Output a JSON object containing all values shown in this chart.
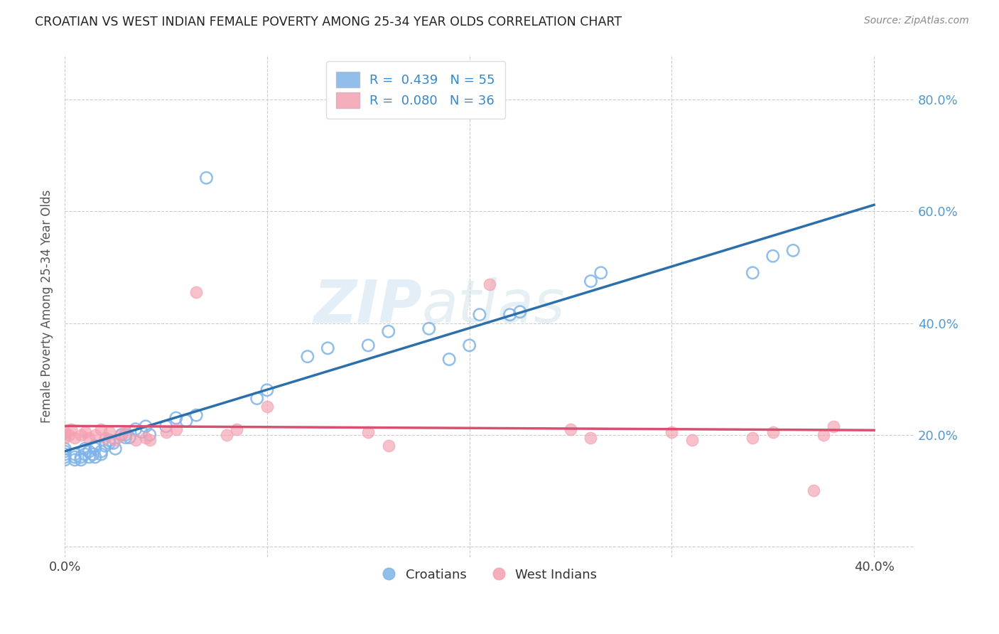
{
  "title": "CROATIAN VS WEST INDIAN FEMALE POVERTY AMONG 25-34 YEAR OLDS CORRELATION CHART",
  "source": "Source: ZipAtlas.com",
  "ylabel": "Female Poverty Among 25-34 Year Olds",
  "xlim": [
    0.0,
    0.42
  ],
  "ylim": [
    -0.02,
    0.88
  ],
  "x_ticks": [
    0.0,
    0.1,
    0.2,
    0.3,
    0.4
  ],
  "x_tick_labels_show": [
    "0.0%",
    "40.0%"
  ],
  "y_ticks_right": [
    0.2,
    0.4,
    0.6,
    0.8
  ],
  "y_tick_labels_right": [
    "20.0%",
    "40.0%",
    "60.0%",
    "80.0%"
  ],
  "croatian_color": "#7fb3e8",
  "west_indian_color": "#f4a0b0",
  "croatian_line_color": "#2c6fad",
  "west_indian_line_color": "#d94f70",
  "legend_label_1": "R =  0.439   N = 55",
  "legend_label_2": "R =  0.080   N = 36",
  "legend_labels_bottom": [
    "Croatians",
    "West Indians"
  ],
  "watermark_1": "ZIP",
  "watermark_2": "atlas",
  "background_color": "#ffffff",
  "grid_color": "#cccccc",
  "croatian_x": [
    0.0,
    0.0,
    0.0,
    0.0,
    0.0,
    0.005,
    0.005,
    0.005,
    0.008,
    0.008,
    0.01,
    0.01,
    0.012,
    0.012,
    0.014,
    0.015,
    0.015,
    0.015,
    0.018,
    0.018,
    0.02,
    0.022,
    0.022,
    0.024,
    0.025,
    0.028,
    0.03,
    0.03,
    0.032,
    0.035,
    0.038,
    0.04,
    0.042,
    0.05,
    0.055,
    0.06,
    0.065,
    0.07,
    0.095,
    0.1,
    0.12,
    0.13,
    0.15,
    0.16,
    0.18,
    0.19,
    0.2,
    0.205,
    0.22,
    0.225,
    0.26,
    0.265,
    0.34,
    0.35,
    0.36
  ],
  "croatian_y": [
    0.155,
    0.16,
    0.165,
    0.17,
    0.175,
    0.155,
    0.16,
    0.165,
    0.155,
    0.16,
    0.165,
    0.175,
    0.16,
    0.17,
    0.165,
    0.175,
    0.18,
    0.16,
    0.165,
    0.17,
    0.18,
    0.19,
    0.185,
    0.185,
    0.175,
    0.2,
    0.195,
    0.2,
    0.195,
    0.21,
    0.205,
    0.215,
    0.2,
    0.215,
    0.23,
    0.225,
    0.235,
    0.66,
    0.265,
    0.28,
    0.34,
    0.355,
    0.36,
    0.385,
    0.39,
    0.335,
    0.36,
    0.415,
    0.415,
    0.42,
    0.475,
    0.49,
    0.49,
    0.52,
    0.53
  ],
  "west_indian_x": [
    0.0,
    0.0,
    0.002,
    0.003,
    0.005,
    0.008,
    0.01,
    0.012,
    0.015,
    0.018,
    0.02,
    0.022,
    0.025,
    0.028,
    0.03,
    0.035,
    0.04,
    0.042,
    0.05,
    0.055,
    0.065,
    0.08,
    0.085,
    0.1,
    0.15,
    0.16,
    0.21,
    0.25,
    0.26,
    0.3,
    0.31,
    0.34,
    0.35,
    0.37,
    0.375,
    0.38
  ],
  "west_indian_y": [
    0.195,
    0.205,
    0.2,
    0.21,
    0.195,
    0.2,
    0.205,
    0.195,
    0.2,
    0.21,
    0.195,
    0.205,
    0.19,
    0.2,
    0.205,
    0.19,
    0.195,
    0.19,
    0.205,
    0.21,
    0.455,
    0.2,
    0.21,
    0.25,
    0.205,
    0.18,
    0.47,
    0.21,
    0.195,
    0.205,
    0.19,
    0.195,
    0.205,
    0.1,
    0.2,
    0.215
  ]
}
